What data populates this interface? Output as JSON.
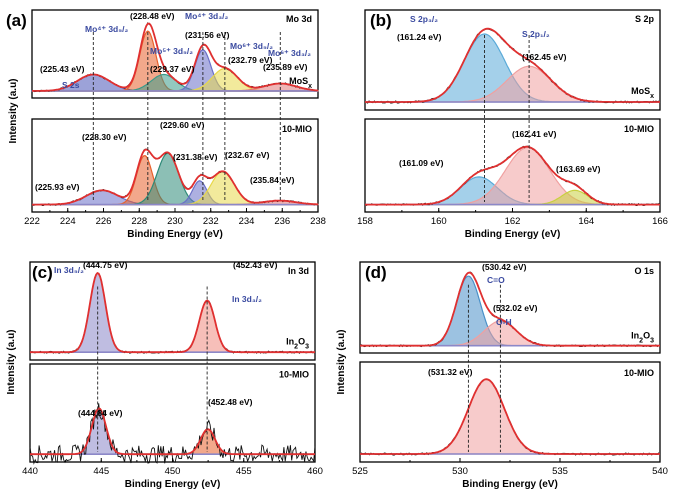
{
  "chart_data": [
    {
      "type": "line",
      "panel_label": "(a)",
      "title": "Mo 3d",
      "xlabel": "Binding Energy (eV)",
      "ylabel": "Intensity (a.u)",
      "xlim": [
        222,
        238
      ],
      "xticks": [
        "222",
        "224",
        "226",
        "228",
        "230",
        "232",
        "234",
        "236",
        "238"
      ],
      "subpanels": [
        {
          "sample": "MoSx",
          "peaks": [
            {
              "center": 225.43,
              "height": 0.22,
              "width": 0.9,
              "color": "#4a55b8"
            },
            {
              "center": 228.48,
              "height": 0.8,
              "width": 0.45,
              "color": "#e8612c"
            },
            {
              "center": 229.37,
              "height": 0.22,
              "width": 0.7,
              "color": "#3a9a8a"
            },
            {
              "center": 231.56,
              "height": 0.55,
              "width": 0.45,
              "color": "#6a70c8"
            },
            {
              "center": 232.79,
              "height": 0.3,
              "width": 0.7,
              "color": "#e8d84a"
            },
            {
              "center": 235.89,
              "height": 0.1,
              "width": 0.9,
              "color": "#e07a7a"
            }
          ],
          "labels": [
            {
              "text": "(228.48 eV)",
              "color": "#000"
            },
            {
              "text": "Mo⁴⁺ 3d₅/₂",
              "color": "#3a4aa0"
            },
            {
              "text": "(225.43 eV)",
              "color": "#000"
            },
            {
              "text": "S 2s",
              "color": "#3a4aa0"
            },
            {
              "text": "Mo⁵⁺ 3d₅/₂",
              "color": "#3a4aa0"
            },
            {
              "text": "(229.37 eV)",
              "color": "#000"
            },
            {
              "text": "Mo⁴⁺ 3d₃/₂",
              "color": "#3a4aa0"
            },
            {
              "text": "(231.56 eV)",
              "color": "#000"
            },
            {
              "text": "Mo⁶⁺ 3d₅/₂",
              "color": "#3a4aa0"
            },
            {
              "text": "(232.79 eV)",
              "color": "#000"
            },
            {
              "text": "Mo⁶⁺ 3d₃/₂",
              "color": "#3a4aa0"
            },
            {
              "text": "(235.89 eV)",
              "color": "#000"
            }
          ]
        },
        {
          "sample": "10-MIO",
          "peaks": [
            {
              "center": 225.93,
              "height": 0.18,
              "width": 0.9,
              "color": "#6a70c8"
            },
            {
              "center": 228.3,
              "height": 0.62,
              "width": 0.45,
              "color": "#e8612c"
            },
            {
              "center": 229.6,
              "height": 0.65,
              "width": 0.6,
              "color": "#2e8a78"
            },
            {
              "center": 231.38,
              "height": 0.3,
              "width": 0.4,
              "color": "#6a70c8"
            },
            {
              "center": 232.67,
              "height": 0.42,
              "width": 0.65,
              "color": "#e8d84a"
            },
            {
              "center": 235.84,
              "height": 0.05,
              "width": 0.9,
              "color": "#e07a7a"
            }
          ],
          "labels": [
            {
              "text": "(228.30 eV)"
            },
            {
              "text": "(229.60 eV)"
            },
            {
              "text": "(225.93 eV)"
            },
            {
              "text": "(231.38 eV)"
            },
            {
              "text": "(232.67 eV)"
            },
            {
              "text": "(235.84 eV)"
            }
          ]
        }
      ],
      "dashed_lines": [
        225.43,
        228.48,
        231.56,
        232.79,
        235.89
      ]
    },
    {
      "type": "line",
      "panel_label": "(b)",
      "title": "S 2p",
      "xlabel": "Binding Energy (eV)",
      "xlim": [
        158,
        166
      ],
      "xticks": [
        "158",
        "160",
        "162",
        "164",
        "166"
      ],
      "subpanels": [
        {
          "sample": "MoSx",
          "peaks": [
            {
              "center": 161.24,
              "height": 0.8,
              "width": 0.55,
              "color": "#5aaad8"
            },
            {
              "center": 162.45,
              "height": 0.42,
              "width": 0.6,
              "color": "#f0a0a0"
            }
          ],
          "labels": [
            {
              "text": "S 2p₃/₂",
              "color": "#3a4aa0"
            },
            {
              "text": "(161.24 eV)"
            },
            {
              "text": "S 2p₁/₂",
              "color": "#3a4aa0"
            },
            {
              "text": "(162.45 eV)"
            }
          ]
        },
        {
          "sample": "10-MIO",
          "peaks": [
            {
              "center": 161.09,
              "height": 0.35,
              "width": 0.5,
              "color": "#5aaad8"
            },
            {
              "center": 162.41,
              "height": 0.72,
              "width": 0.6,
              "color": "#f0a0a0"
            },
            {
              "center": 163.69,
              "height": 0.18,
              "width": 0.35,
              "color": "#c8d040"
            }
          ],
          "labels": [
            {
              "text": "(162.41 eV)"
            },
            {
              "text": "(161.09 eV)"
            },
            {
              "text": "(163.69 eV)"
            }
          ]
        }
      ],
      "dashed_lines": [
        161.24,
        162.45
      ]
    },
    {
      "type": "line",
      "panel_label": "(c)",
      "title": "In 3d",
      "xlabel": "Binding Energy (eV)",
      "ylabel": "Intensity (a.u)",
      "xlim": [
        440,
        460
      ],
      "xticks": [
        "440",
        "445",
        "450",
        "455",
        "460"
      ],
      "subpanels": [
        {
          "sample": "In2O3",
          "peaks": [
            {
              "center": 444.75,
              "height": 0.95,
              "width": 0.55,
              "color": "#8a86c8"
            },
            {
              "center": 452.43,
              "height": 0.62,
              "width": 0.55,
              "color": "#f08a80"
            }
          ],
          "labels": [
            {
              "text": "In 3d₅/₂",
              "color": "#3a4aa0"
            },
            {
              "text": "(444.75 eV)"
            },
            {
              "text": "(452.43 eV)"
            },
            {
              "text": "In 3d₃/₂",
              "color": "#3a4aa0"
            }
          ]
        },
        {
          "sample": "10-MIO",
          "peaks": [
            {
              "center": 444.84,
              "height": 0.55,
              "width": 0.5,
              "color": "#8a86c8"
            },
            {
              "center": 452.48,
              "height": 0.3,
              "width": 0.5,
              "color": "#e8612c"
            }
          ],
          "labels": [
            {
              "text": "(444.84 eV)"
            },
            {
              "text": "(452.48 eV)"
            }
          ]
        }
      ],
      "dashed_lines": [
        444.75,
        452.43
      ]
    },
    {
      "type": "line",
      "panel_label": "(d)",
      "title": "O 1s",
      "xlabel": "Binding Energy (eV)",
      "ylabel": "Intensity (a.u)",
      "xlim": [
        525,
        540
      ],
      "xticks": [
        "525",
        "530",
        "535",
        "540"
      ],
      "subpanels": [
        {
          "sample": "In2O3",
          "peaks": [
            {
              "center": 530.42,
              "height": 0.9,
              "width": 0.6,
              "color": "#4a90c8"
            },
            {
              "center": 532.02,
              "height": 0.32,
              "width": 0.8,
              "color": "#f0a0a0"
            }
          ],
          "labels": [
            {
              "text": "(530.42 eV)"
            },
            {
              "text": "C=O",
              "color": "#3a4aa0"
            },
            {
              "text": "(532.02 eV)"
            },
            {
              "text": "O-H",
              "color": "#3a4aa0"
            }
          ]
        },
        {
          "sample": "10-MIO",
          "peaks": [
            {
              "center": 531.32,
              "height": 0.88,
              "width": 0.9,
              "color": "#f0a0a0"
            }
          ],
          "labels": [
            {
              "text": "(531.32 eV)"
            }
          ]
        }
      ],
      "dashed_lines": [
        530.42,
        532.02
      ]
    }
  ]
}
